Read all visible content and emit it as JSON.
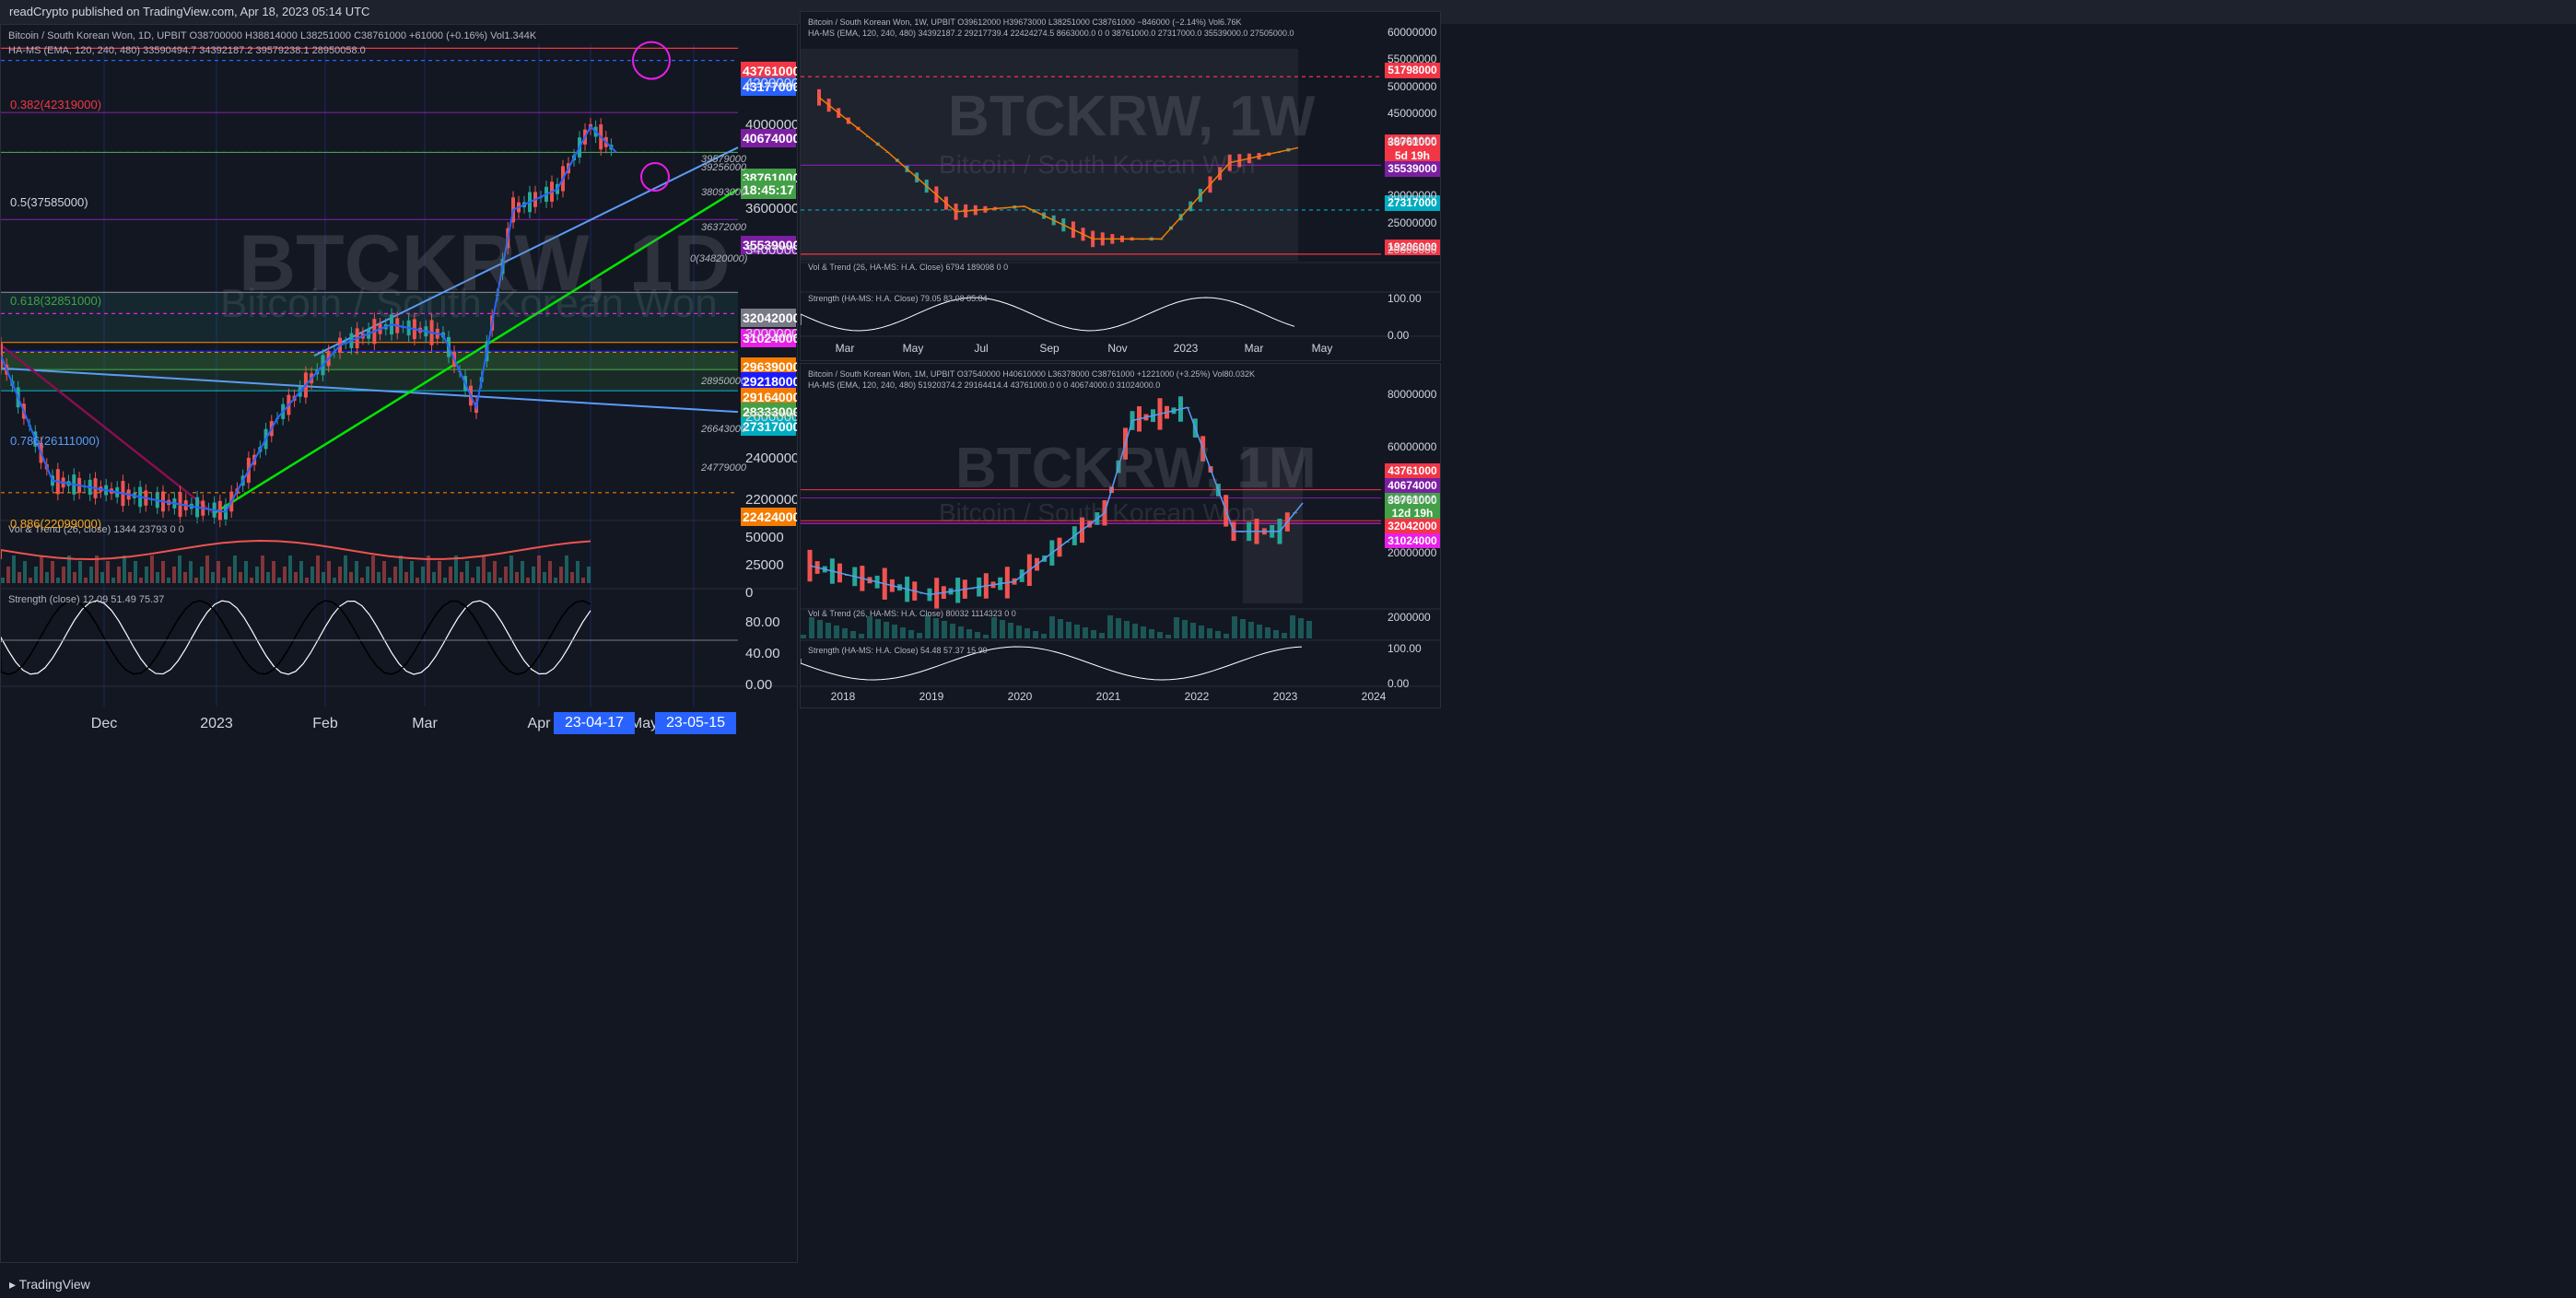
{
  "header": {
    "text": "readCrypto published on TradingView.com, Apr 18, 2023 05:14 UTC"
  },
  "footer": {
    "text": "TradingView"
  },
  "colors": {
    "bg": "#131722",
    "up": "#26a69a",
    "down": "#ef5350",
    "red_label": "#f23645",
    "blue_label": "#2962ff",
    "green_label": "#43a047",
    "purple_label": "#7b1fa2",
    "magenta_label": "#e91ee9",
    "orange_label": "#f57c00",
    "teal_label": "#00acc1",
    "gray_label": "#787b86"
  },
  "panels": {
    "daily": {
      "legend1": "Bitcoin / South Korean Won, 1D, UPBIT  O38700000  H38814000  L38251000  C38761000  +61000 (+0.16%)  Vol1.344K",
      "legend2": "HA-MS (EMA, 120, 240, 480)  33590494.7  34392187.2  39579238.1  28950058.0",
      "watermark": "BTCKRW, 1D",
      "watermark_sub": "Bitcoin / South Korean Won",
      "vol_legend": "Vol & Trend (26, close)  1344  23793  0  0",
      "strength_legend": "Strength (close)  12.09  51.49  75.37",
      "price_axis": [
        "42000000",
        "40000000",
        "36000000",
        "34000000",
        "30000000",
        "26000000",
        "24000000",
        "22000000"
      ],
      "vol_axis": [
        "50000",
        "25000",
        "0"
      ],
      "strength_axis": [
        "80.00",
        "40.00",
        "0.00"
      ],
      "time_axis": [
        "Dec",
        "2023",
        "Feb",
        "Mar",
        "Apr",
        "May"
      ],
      "date_boxes": [
        "23-04-17",
        "23-05-15"
      ],
      "annotations": [
        "39579000",
        "39256000",
        "38093000",
        "36372000",
        "0(34820000)",
        "28950000",
        "26643000",
        "24779000"
      ],
      "fib_labels": [
        "0.382(42319000)",
        "0.5(37585000)",
        "0.618(32851000)",
        "0.786(26111000)",
        "0.886(22099000)"
      ],
      "price_labels": [
        {
          "text": "43761000",
          "color": "#f23645"
        },
        {
          "text": "43177000",
          "color": "#2962ff"
        },
        {
          "text": "40674000",
          "color": "#7b1fa2"
        },
        {
          "text": "38761000",
          "color": "#43a047"
        },
        {
          "text": "18:45:17",
          "color": "#43a047"
        },
        {
          "text": "35539000",
          "color": "#7b1fa2"
        },
        {
          "text": "32042000",
          "color": "#787b86"
        },
        {
          "text": "31024000",
          "color": "#e91ee9"
        },
        {
          "text": "29639000",
          "color": "#f57c00"
        },
        {
          "text": "29218000",
          "color": "#1a1aff"
        },
        {
          "text": "29164000",
          "color": "#f57c00"
        },
        {
          "text": "28333000",
          "color": "#43a047"
        },
        {
          "text": "27317000",
          "color": "#00acc1"
        },
        {
          "text": "22424000",
          "color": "#f57c00"
        }
      ]
    },
    "weekly": {
      "legend1": "Bitcoin / South Korean Won, 1W, UPBIT  O39612000  H39673000  L38251000  C38761000  −846000 (−2.14%)  Vol6.76K",
      "legend2": "HA-MS (EMA, 120, 240, 480)  34392187.2  29217739.4  22424274.5  8663000.0  0  0  38761000.0  27317000.0  35539000.0  27505000.0",
      "watermark": "BTCKRW, 1W",
      "watermark_sub": "Bitcoin / South Korean Won",
      "vol_legend": "Vol & Trend (26, HA-MS: H.A. Close)  6794  189098  0  0",
      "strength_legend": "Strength (HA-MS: H.A. Close)  79.05  83.08  85.84",
      "price_axis": [
        "60000000",
        "55000000",
        "50000000",
        "45000000",
        "40000000",
        "30000000",
        "25000000",
        "20000000"
      ],
      "strength_axis": [
        "100.00",
        "0.00"
      ],
      "time_axis": [
        "Mar",
        "May",
        "Jul",
        "Sep",
        "Nov",
        "2023",
        "Mar",
        "May"
      ],
      "price_labels": [
        {
          "text": "51798000",
          "color": "#f23645"
        },
        {
          "text": "38761000",
          "color": "#f23645"
        },
        {
          "text": "5d 19h",
          "color": "#f23645"
        },
        {
          "text": "35539000",
          "color": "#7b1fa2"
        },
        {
          "text": "27317000",
          "color": "#00acc1"
        },
        {
          "text": "19206000",
          "color": "#f23645"
        }
      ]
    },
    "monthly": {
      "legend1": "Bitcoin / South Korean Won, 1M, UPBIT  O37540000  H40610000  L36378000  C38761000  +1221000 (+3.25%)  Vol80.032K",
      "legend2": "HA-MS (EMA, 120, 240, 480)  51920374.2  29164414.4  43761000.0  0  0  40674000.0  31024000.0",
      "watermark": "BTCKRW, 1M",
      "watermark_sub": "Bitcoin / South Korean Won",
      "vol_legend": "Vol & Trend (26, HA-MS: H.A. Close)  80032  1114323  0  0",
      "strength_legend": "Strength (HA-MS: H.A. Close)  54.48  57.37  15.99",
      "price_axis": [
        "80000000",
        "60000000",
        "40000000",
        "20000000"
      ],
      "vol_axis": [
        "2000000"
      ],
      "strength_axis": [
        "100.00",
        "0.00"
      ],
      "time_axis": [
        "2018",
        "2019",
        "2020",
        "2021",
        "2022",
        "2023",
        "2024"
      ],
      "price_labels": [
        {
          "text": "43761000",
          "color": "#f23645"
        },
        {
          "text": "40674000",
          "color": "#7b1fa2"
        },
        {
          "text": "38761000",
          "color": "#43a047"
        },
        {
          "text": "12d 19h",
          "color": "#43a047"
        },
        {
          "text": "32042000",
          "color": "#f23645"
        },
        {
          "text": "31024000",
          "color": "#e91ee9"
        }
      ]
    }
  },
  "chart_data": [
    {
      "type": "line",
      "title": "BTCKRW, 1D",
      "series": [
        {
          "name": "BTCKRW",
          "x": [
            "2022-11-01",
            "2022-11-15",
            "2022-12-01",
            "2022-12-15",
            "2023-01-01",
            "2023-01-15",
            "2023-02-01",
            "2023-02-15",
            "2023-03-01",
            "2023-03-10",
            "2023-03-20",
            "2023-04-01",
            "2023-04-10",
            "2023-04-17"
          ],
          "values": [
            29000000,
            23000000,
            22500000,
            22000000,
            21500000,
            26000000,
            29500000,
            30500000,
            30000000,
            26500000,
            36000000,
            37000000,
            40000000,
            38761000
          ]
        }
      ],
      "ylim": [
        21000000,
        44000000
      ],
      "horizontal_levels": [
        43761000,
        43177000,
        40674000,
        38761000,
        35539000,
        32042000,
        31024000,
        29639000,
        29218000,
        29164000,
        28333000,
        27317000,
        22424000
      ]
    },
    {
      "type": "line",
      "title": "BTCKRW, 1W",
      "series": [
        {
          "name": "BTCKRW",
          "x": [
            "2022-03",
            "2022-05",
            "2022-07",
            "2022-09",
            "2022-11",
            "2023-01",
            "2023-03",
            "2023-04"
          ],
          "values": [
            48000000,
            38000000,
            27000000,
            28000000,
            22000000,
            22000000,
            36000000,
            38761000
          ]
        }
      ],
      "ylim": [
        18000000,
        62000000
      ]
    },
    {
      "type": "line",
      "title": "BTCKRW, 1M",
      "series": [
        {
          "name": "BTCKRW",
          "x": [
            "2018-01",
            "2019-01",
            "2020-01",
            "2021-01",
            "2021-04",
            "2021-11",
            "2022-06",
            "2023-01",
            "2023-04"
          ],
          "values": [
            15000000,
            4000000,
            9000000,
            35000000,
            70000000,
            75000000,
            28000000,
            28000000,
            38761000
          ]
        }
      ],
      "ylim": [
        0,
        88000000
      ]
    }
  ]
}
